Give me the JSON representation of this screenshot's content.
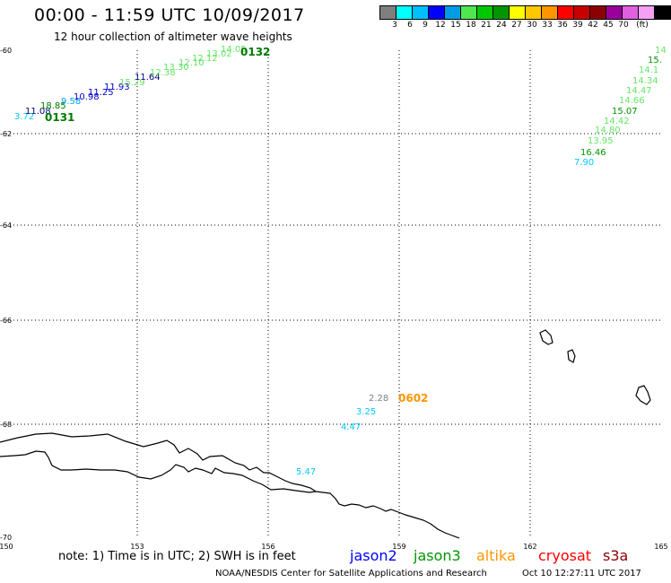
{
  "title": "00:00 - 11:59 UTC 10/09/2017",
  "subtitle": "12 hour collection of altimeter wave heights",
  "legend": {
    "colors": [
      "#7f7f7f",
      "#00ffff",
      "#00bfff",
      "#0000ff",
      "#009ce6",
      "#50e650",
      "#00c800",
      "#009600",
      "#ffff00",
      "#ffc800",
      "#ff9600",
      "#ff0000",
      "#c80000",
      "#8b0000",
      "#9b009b",
      "#e060e0",
      "#f5a0f5",
      "#000000"
    ],
    "labels": [
      "3",
      "6",
      "9",
      "12",
      "15",
      "18",
      "21",
      "24",
      "27",
      "30",
      "33",
      "36",
      "39",
      "42",
      "45",
      "70",
      "(ft)"
    ]
  },
  "axes": {
    "lon_ticks": [
      "150",
      "153",
      "156",
      "159",
      "162",
      "165"
    ],
    "lat_ticks": [
      "-60",
      "-62",
      "-64",
      "-66",
      "-68",
      "-70"
    ]
  },
  "tracks": [
    {
      "satellite": "jason3",
      "time_label": "0131",
      "time_color": "#007a00",
      "points": [
        {
          "v": "3.72",
          "c": "#00c8ff"
        },
        {
          "v": "11.08",
          "c": "#00007a"
        },
        {
          "v": "18.85",
          "c": "#007a00"
        },
        {
          "v": "9.58",
          "c": "#00a0ff"
        },
        {
          "v": "10.98",
          "c": "#0000c8"
        },
        {
          "v": "11.25",
          "c": "#0000c8"
        },
        {
          "v": "11.93",
          "c": "#0000c8"
        },
        {
          "v": "15.29",
          "c": "#64e664"
        },
        {
          "v": "11.64",
          "c": "#00007a"
        },
        {
          "v": "12.38",
          "c": "#64e664"
        },
        {
          "v": "13.30",
          "c": "#64e664"
        },
        {
          "v": "12.10",
          "c": "#64e664"
        },
        {
          "v": "12.12",
          "c": "#64e664"
        },
        {
          "v": "13.02",
          "c": "#64e664"
        },
        {
          "v": "14.05",
          "c": "#64e664"
        }
      ]
    },
    {
      "satellite": "jason3",
      "time_label": "0132",
      "time_color": "#007a00",
      "points": []
    },
    {
      "satellite": "jason3",
      "time_label": "",
      "points": [
        {
          "v": "7.90",
          "c": "#00c8ff"
        },
        {
          "v": "16.46",
          "c": "#009600"
        },
        {
          "v": "13.95",
          "c": "#64e664"
        },
        {
          "v": "14.80",
          "c": "#64e664"
        },
        {
          "v": "14.42",
          "c": "#64e664"
        },
        {
          "v": "15.07",
          "c": "#009600"
        },
        {
          "v": "14.66",
          "c": "#64e664"
        },
        {
          "v": "14.47",
          "c": "#64e664"
        },
        {
          "v": "14.34",
          "c": "#64e664"
        },
        {
          "v": "14.1",
          "c": "#64e664"
        },
        {
          "v": "15.",
          "c": "#009600"
        },
        {
          "v": "14",
          "c": "#64e664"
        }
      ]
    },
    {
      "satellite": "altika",
      "time_label": "0602",
      "time_color": "#ff9600",
      "points": [
        {
          "v": "5.47",
          "c": "#00c8ff"
        },
        {
          "v": "4.47",
          "c": "#00c8ff"
        },
        {
          "v": "3.25",
          "c": "#00c8ff"
        },
        {
          "v": "2.28",
          "c": "#7f7f7f"
        }
      ]
    }
  ],
  "footer": {
    "note": "note: 1) Time is in UTC; 2) SWH is in feet",
    "sats": [
      {
        "name": "jason2",
        "color": "#0000ff"
      },
      {
        "name": "jason3",
        "color": "#009600"
      },
      {
        "name": "altika",
        "color": "#ff9600"
      },
      {
        "name": "cryosat",
        "color": "#ff0000"
      },
      {
        "name": "s3a",
        "color": "#8b0000"
      }
    ],
    "credit": "NOAA/NESDIS Center for Satellite Applications and Research",
    "timestamp": "Oct 10 12:27:11 UTC 2017"
  }
}
